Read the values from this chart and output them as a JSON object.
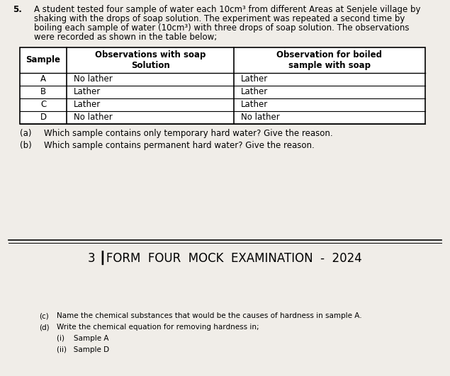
{
  "background_top": "#f0ede8",
  "background_dark_band": "#1a1a1a",
  "question_number": "5.",
  "question_text_lines": [
    "A student tested four sample of water each 10cm³ from different Areas at Senjele village by",
    "shaking with the drops of soap solution. The experiment was repeated a second time by",
    "boiling each sample of water (10cm³) with three drops of soap solution. The observations",
    "were recorded as shown in the table below;"
  ],
  "table_data": [
    [
      "A",
      "No lather",
      "Lather"
    ],
    [
      "B",
      "Lather",
      "Lather"
    ],
    [
      "C",
      "Lather",
      "Lather"
    ],
    [
      "D",
      "No lather",
      "No lather"
    ]
  ],
  "sub_questions": [
    [
      "(a)",
      "Which sample contains only temporary hard water? Give the reason."
    ],
    [
      "(b)",
      "Which sample contains permanent hard water? Give the reason."
    ]
  ],
  "footer_text": "3 ┃FORM  FOUR  MOCK  EXAMINATION  -  2024",
  "bottom_questions": [
    [
      "(c)",
      "Name the chemical substances that would be the causes of hardness in sample A."
    ],
    [
      "(d)",
      "Write the chemical equation for removing hardness in;"
    ],
    [
      "",
      "(i)    Sample A"
    ],
    [
      "",
      "(ii)   Sample D"
    ]
  ],
  "font_size_question": 8.5,
  "font_size_table": 8.5,
  "font_size_footer": 12.0,
  "font_size_sub": 8.5,
  "font_size_bottom": 7.5
}
